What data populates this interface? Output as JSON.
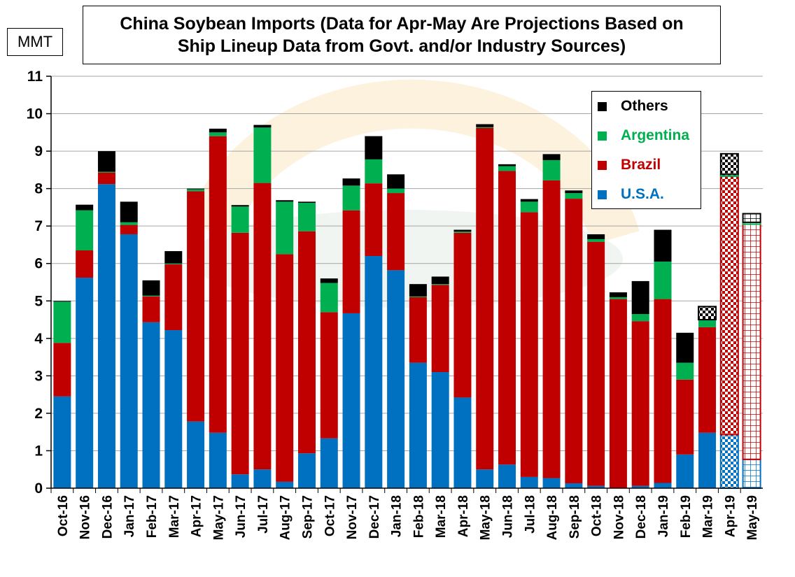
{
  "chart_data": {
    "type": "bar",
    "stacked": true,
    "title": "China Soybean Imports (Data for Apr-May Are Projections Based on Ship Lineup Data from Govt. and/or Industry Sources)",
    "title_lines": [
      "China Soybean Imports (Data for Apr-May Are Projections Based on",
      "Ship Lineup Data from Govt. and/or Industry Sources)"
    ],
    "ylabel": "MMT",
    "xlabel": "",
    "ylim": [
      0,
      11
    ],
    "yticks": [
      0,
      1,
      2,
      3,
      4,
      5,
      6,
      7,
      8,
      9,
      10,
      11
    ],
    "grid": true,
    "legend_placement": "top-right",
    "categories": [
      "Oct-16",
      "Nov-16",
      "Dec-16",
      "Jan-17",
      "Feb-17",
      "Mar-17",
      "Apr-17",
      "May-17",
      "Jun-17",
      "Jul-17",
      "Aug-17",
      "Sep-17",
      "Oct-17",
      "Nov-17",
      "Dec-17",
      "Jan-18",
      "Feb-18",
      "Mar-18",
      "Apr-18",
      "May-18",
      "Jun-18",
      "Jul-18",
      "Aug-18",
      "Sep-18",
      "Oct-18",
      "Nov-18",
      "Dec-18",
      "Jan-19",
      "Feb-19",
      "Mar-19",
      "Apr-19",
      "May-19"
    ],
    "series": [
      {
        "name": "U.S.A.",
        "color": "#0070C0",
        "values": [
          2.45,
          5.62,
          8.12,
          6.78,
          4.43,
          4.22,
          1.78,
          1.48,
          0.37,
          0.5,
          0.17,
          0.93,
          1.33,
          4.67,
          6.2,
          5.82,
          3.35,
          3.1,
          2.42,
          0.5,
          0.63,
          0.3,
          0.27,
          0.13,
          0.06,
          0.0,
          0.06,
          0.14,
          0.9,
          1.48,
          1.43,
          0.77
        ]
      },
      {
        "name": "Brazil",
        "color": "#C00000",
        "values": [
          1.43,
          0.73,
          0.31,
          0.25,
          0.69,
          1.76,
          6.15,
          7.92,
          6.45,
          7.65,
          6.08,
          5.93,
          3.37,
          2.75,
          1.94,
          2.06,
          1.75,
          2.33,
          4.4,
          9.12,
          7.84,
          7.07,
          7.95,
          7.6,
          6.52,
          5.05,
          4.4,
          4.91,
          2.0,
          2.82,
          6.9,
          6.28
        ]
      },
      {
        "name": "Argentina",
        "color": "#00B050",
        "values": [
          1.1,
          1.07,
          0.02,
          0.07,
          0.02,
          0.02,
          0.05,
          0.1,
          0.7,
          1.48,
          1.4,
          0.76,
          0.78,
          0.66,
          0.64,
          0.12,
          0.02,
          0.02,
          0.03,
          0.02,
          0.13,
          0.28,
          0.54,
          0.15,
          0.07,
          0.05,
          0.19,
          1.0,
          0.45,
          0.2,
          0.05,
          0.05
        ]
      },
      {
        "name": "Others",
        "color": "#000000",
        "values": [
          0.02,
          0.15,
          0.55,
          0.55,
          0.41,
          0.33,
          0.02,
          0.1,
          0.04,
          0.07,
          0.04,
          0.03,
          0.12,
          0.19,
          0.62,
          0.38,
          0.33,
          0.2,
          0.05,
          0.08,
          0.05,
          0.07,
          0.16,
          0.07,
          0.13,
          0.13,
          0.88,
          0.85,
          0.8,
          0.35,
          0.55,
          0.23
        ]
      }
    ],
    "projection_patterns": {
      "Mar-19": {
        "Others": "checker"
      },
      "Apr-19": {
        "all": "checker"
      },
      "May-19": {
        "all": "grid"
      }
    },
    "legend_order": [
      "Others",
      "Argentina",
      "Brazil",
      "U.S.A."
    ]
  }
}
